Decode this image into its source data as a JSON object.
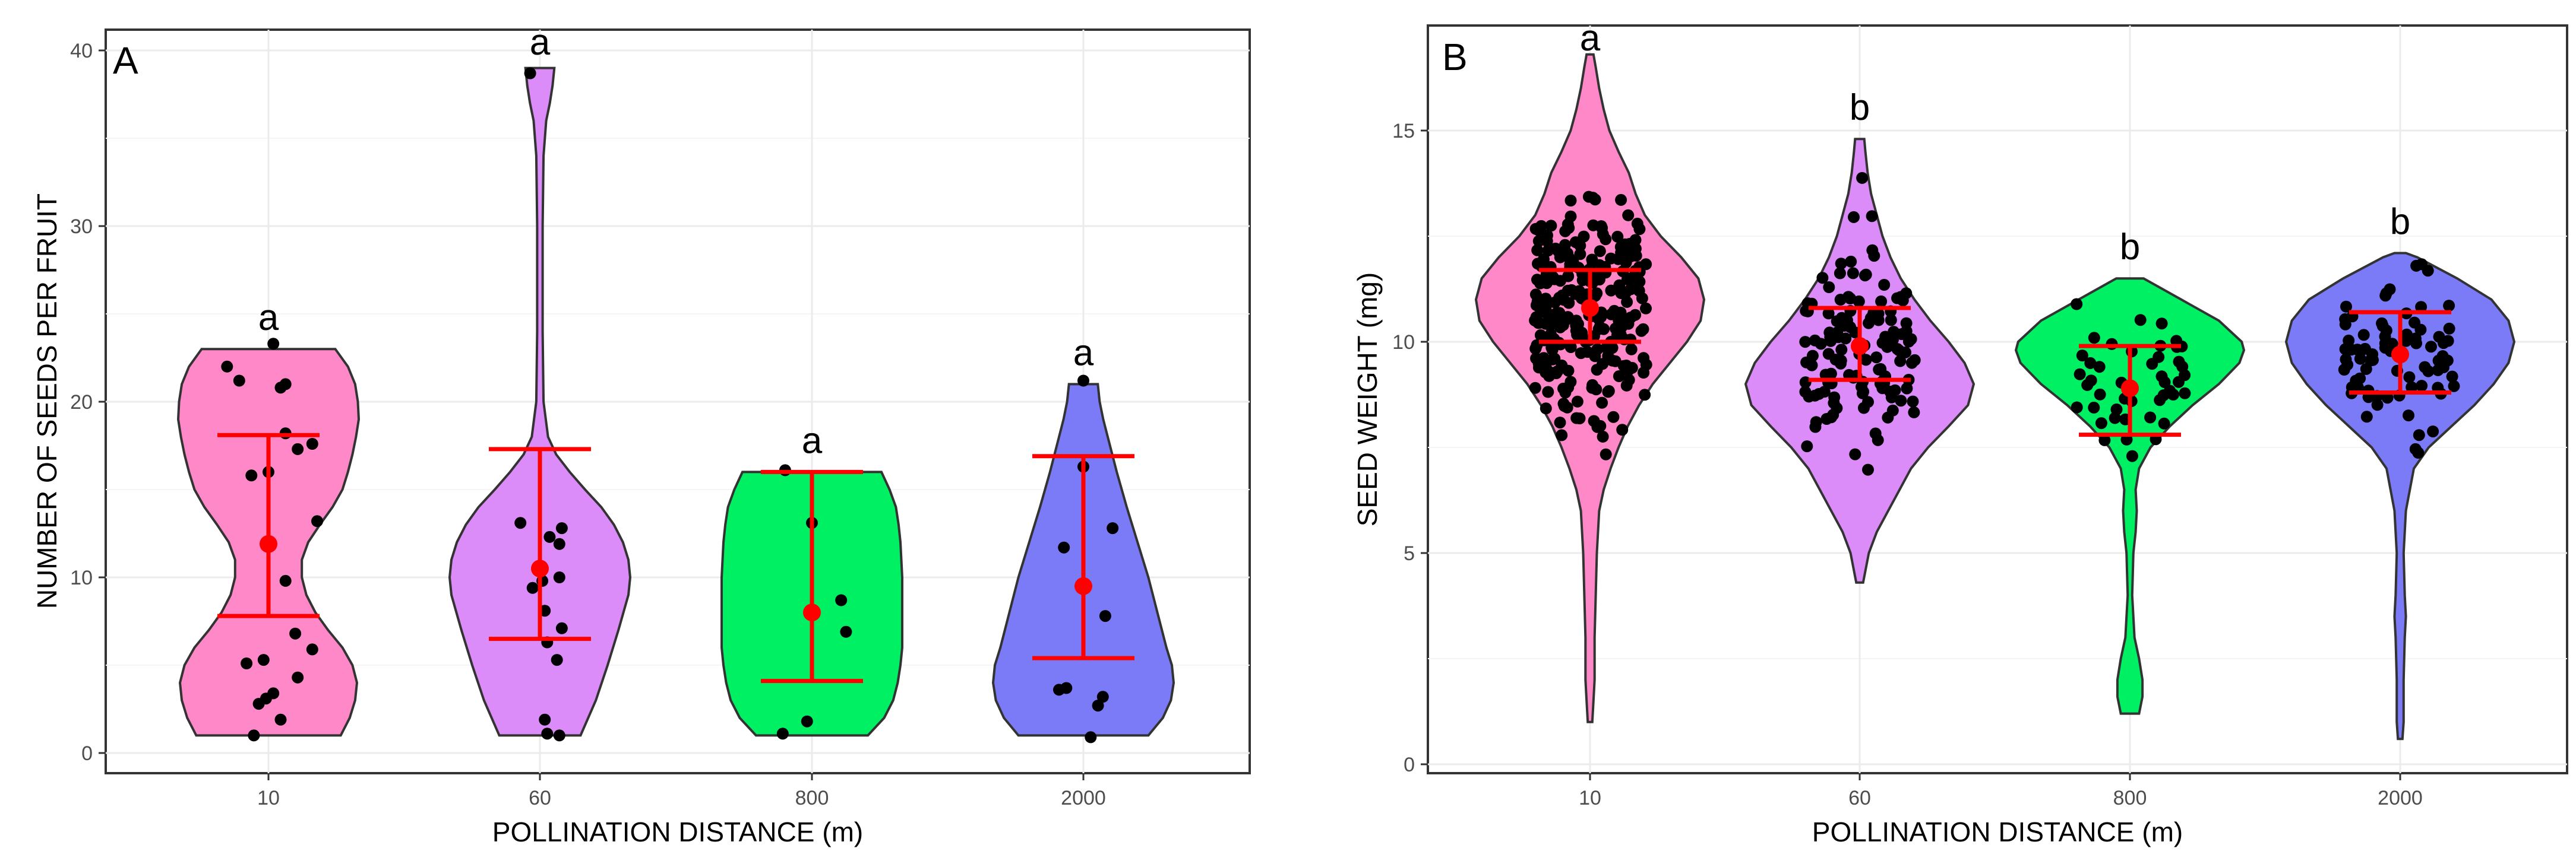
{
  "chart_data": [
    {
      "type": "violin",
      "panel_label": "A",
      "xlabel": "POLLINATION DISTANCE (m)",
      "ylabel": "NUMBER OF SEEDS PER FRUIT",
      "ylim": [
        0,
        41
      ],
      "yticks": [
        0,
        10,
        20,
        30,
        40
      ],
      "grid": true,
      "categories": [
        "10",
        "60",
        "800",
        "2000"
      ],
      "colors": [
        "#ff88c8",
        "#dc8cf8",
        "#00f064",
        "#7b7bf8"
      ],
      "groups": [
        {
          "category": "10",
          "letter": "a",
          "mean": 11.9,
          "lower": 7.8,
          "upper": 18.1,
          "min": 1,
          "max": 23,
          "density": [
            [
              1,
              0.8
            ],
            [
              2,
              0.9
            ],
            [
              3,
              0.96
            ],
            [
              4,
              0.98
            ],
            [
              5,
              0.93
            ],
            [
              6,
              0.82
            ],
            [
              7,
              0.66
            ],
            [
              8,
              0.52
            ],
            [
              9,
              0.42
            ],
            [
              10,
              0.37
            ],
            [
              11,
              0.37
            ],
            [
              12,
              0.44
            ],
            [
              13,
              0.57
            ],
            [
              14,
              0.71
            ],
            [
              15,
              0.82
            ],
            [
              16,
              0.88
            ],
            [
              17,
              0.93
            ],
            [
              18,
              0.97
            ],
            [
              19,
              1.0
            ],
            [
              20,
              0.99
            ],
            [
              21,
              0.96
            ],
            [
              22,
              0.88
            ],
            [
              23,
              0.74
            ]
          ],
          "points": [
            [
              1,
              -0.3
            ],
            [
              1.9,
              0.25
            ],
            [
              2.8,
              -0.2
            ],
            [
              3.1,
              -0.05
            ],
            [
              3.4,
              0.1
            ],
            [
              4.3,
              0.6
            ],
            [
              5.1,
              -0.45
            ],
            [
              5.3,
              -0.1
            ],
            [
              5.9,
              0.9
            ],
            [
              6.8,
              0.55
            ],
            [
              9.8,
              0.35
            ],
            [
              13.2,
              1.0
            ],
            [
              15.8,
              -0.35
            ],
            [
              16.0,
              0.0
            ],
            [
              17.3,
              0.6
            ],
            [
              17.6,
              0.9
            ],
            [
              18.2,
              0.35
            ],
            [
              20.8,
              0.25
            ],
            [
              21.0,
              0.35
            ],
            [
              21.2,
              -0.6
            ],
            [
              22.0,
              -0.85
            ],
            [
              23.3,
              0.1
            ]
          ]
        },
        {
          "category": "60",
          "letter": "a",
          "mean": 10.5,
          "lower": 6.5,
          "upper": 17.3,
          "min": 1,
          "max": 39,
          "density": [
            [
              1,
              0.45
            ],
            [
              3,
              0.62
            ],
            [
              5,
              0.75
            ],
            [
              7,
              0.87
            ],
            [
              9,
              0.98
            ],
            [
              10,
              1.0
            ],
            [
              11,
              0.98
            ],
            [
              12,
              0.92
            ],
            [
              13,
              0.82
            ],
            [
              14,
              0.68
            ],
            [
              15,
              0.5
            ],
            [
              16,
              0.33
            ],
            [
              17,
              0.18
            ],
            [
              18,
              0.09
            ],
            [
              20,
              0.04
            ],
            [
              24,
              0.03
            ],
            [
              30,
              0.03
            ],
            [
              34,
              0.04
            ],
            [
              36,
              0.07
            ],
            [
              37,
              0.11
            ],
            [
              38,
              0.14
            ],
            [
              39,
              0.16
            ]
          ],
          "points": [
            [
              1.0,
              0.4
            ],
            [
              1.1,
              0.15
            ],
            [
              1.9,
              0.1
            ],
            [
              5.3,
              0.35
            ],
            [
              6.3,
              0.15
            ],
            [
              7.1,
              0.45
            ],
            [
              8.1,
              0.1
            ],
            [
              9.4,
              -0.15
            ],
            [
              9.8,
              0.05
            ],
            [
              10.0,
              0.4
            ],
            [
              11.9,
              0.4
            ],
            [
              12.3,
              0.2
            ],
            [
              12.8,
              0.45
            ],
            [
              13.1,
              -0.4
            ],
            [
              38.7,
              -0.2
            ]
          ]
        },
        {
          "category": "800",
          "letter": "a",
          "mean": 8.0,
          "lower": 4.1,
          "upper": 16.0,
          "min": 1,
          "max": 16,
          "density": [
            [
              1,
              0.62
            ],
            [
              2,
              0.8
            ],
            [
              3,
              0.9
            ],
            [
              4,
              0.95
            ],
            [
              5,
              0.98
            ],
            [
              6,
              1.0
            ],
            [
              8,
              1.0
            ],
            [
              10,
              1.0
            ],
            [
              11,
              0.99
            ],
            [
              12,
              0.98
            ],
            [
              13,
              0.96
            ],
            [
              14,
              0.93
            ],
            [
              15,
              0.86
            ],
            [
              16,
              0.77
            ]
          ],
          "points": [
            [
              1.1,
              -0.6
            ],
            [
              1.8,
              -0.1
            ],
            [
              6.9,
              0.7
            ],
            [
              8.7,
              0.6
            ],
            [
              13.1,
              0.0
            ],
            [
              16.1,
              -0.55
            ]
          ]
        },
        {
          "category": "2000",
          "letter": "a",
          "mean": 9.5,
          "lower": 5.4,
          "upper": 16.9,
          "min": 1,
          "max": 21,
          "density": [
            [
              1,
              0.72
            ],
            [
              2,
              0.88
            ],
            [
              3,
              0.97
            ],
            [
              4,
              1.0
            ],
            [
              5,
              0.98
            ],
            [
              6,
              0.92
            ],
            [
              8,
              0.82
            ],
            [
              10,
              0.72
            ],
            [
              12,
              0.6
            ],
            [
              14,
              0.48
            ],
            [
              16,
              0.37
            ],
            [
              18,
              0.27
            ],
            [
              19,
              0.22
            ],
            [
              20,
              0.18
            ],
            [
              21,
              0.16
            ]
          ],
          "points": [
            [
              0.9,
              0.15
            ],
            [
              2.7,
              0.3
            ],
            [
              3.2,
              0.4
            ],
            [
              3.6,
              -0.5
            ],
            [
              3.7,
              -0.35
            ],
            [
              7.8,
              0.45
            ],
            [
              11.7,
              -0.4
            ],
            [
              12.8,
              0.6
            ],
            [
              16.3,
              0.0
            ],
            [
              21.2,
              0.0
            ]
          ]
        }
      ]
    },
    {
      "type": "violin",
      "panel_label": "B",
      "xlabel": "POLLINATION DISTANCE (m)",
      "ylabel": "SEED WEIGHT (mg)",
      "ylim": [
        0,
        17.2
      ],
      "yticks": [
        0,
        5,
        10,
        15
      ],
      "grid": true,
      "categories": [
        "10",
        "60",
        "800",
        "2000"
      ],
      "colors": [
        "#ff88c8",
        "#dc8cf8",
        "#00f064",
        "#7b7bf8"
      ],
      "groups": [
        {
          "category": "10",
          "letter": "a",
          "mean": 10.8,
          "lower": 10.0,
          "upper": 11.7,
          "min": 1,
          "max": 16.8,
          "n_points": 270,
          "point_sd": 1.6,
          "density": [
            [
              1.0,
              0.02
            ],
            [
              1.5,
              0.03
            ],
            [
              2,
              0.04
            ],
            [
              3,
              0.04
            ],
            [
              4,
              0.05
            ],
            [
              5,
              0.06
            ],
            [
              6,
              0.08
            ],
            [
              6.5,
              0.12
            ],
            [
              7,
              0.18
            ],
            [
              7.5,
              0.25
            ],
            [
              8,
              0.33
            ],
            [
              8.5,
              0.43
            ],
            [
              9,
              0.55
            ],
            [
              9.5,
              0.7
            ],
            [
              10,
              0.85
            ],
            [
              10.5,
              0.97
            ],
            [
              11,
              1.0
            ],
            [
              11.5,
              0.95
            ],
            [
              12,
              0.8
            ],
            [
              12.5,
              0.62
            ],
            [
              13,
              0.48
            ],
            [
              13.5,
              0.4
            ],
            [
              14,
              0.34
            ],
            [
              14.5,
              0.25
            ],
            [
              15,
              0.17
            ],
            [
              15.5,
              0.12
            ],
            [
              16,
              0.08
            ],
            [
              16.5,
              0.05
            ],
            [
              16.8,
              0.03
            ]
          ]
        },
        {
          "category": "60",
          "letter": "b",
          "mean": 9.9,
          "lower": 9.1,
          "upper": 10.8,
          "min": 4.3,
          "max": 14.8,
          "n_points": 130,
          "point_sd": 1.5,
          "density": [
            [
              4.3,
              0.03
            ],
            [
              5,
              0.08
            ],
            [
              5.5,
              0.15
            ],
            [
              6,
              0.25
            ],
            [
              6.5,
              0.35
            ],
            [
              7,
              0.45
            ],
            [
              7.5,
              0.6
            ],
            [
              8,
              0.78
            ],
            [
              8.5,
              0.95
            ],
            [
              9,
              1.0
            ],
            [
              9.5,
              0.92
            ],
            [
              10,
              0.78
            ],
            [
              10.5,
              0.62
            ],
            [
              11,
              0.48
            ],
            [
              11.5,
              0.36
            ],
            [
              12,
              0.27
            ],
            [
              12.5,
              0.2
            ],
            [
              13,
              0.15
            ],
            [
              13.5,
              0.1
            ],
            [
              14,
              0.07
            ],
            [
              14.5,
              0.05
            ],
            [
              14.8,
              0.04
            ]
          ]
        },
        {
          "category": "800",
          "letter": "b",
          "mean": 8.9,
          "lower": 7.8,
          "upper": 9.9,
          "min": 1.2,
          "max": 11.5,
          "n_points": 45,
          "point_sd": 1.0,
          "density": [
            [
              1.2,
              0.08
            ],
            [
              1.6,
              0.11
            ],
            [
              2,
              0.11
            ],
            [
              2.5,
              0.08
            ],
            [
              3,
              0.04
            ],
            [
              4,
              0.02
            ],
            [
              5,
              0.03
            ],
            [
              5.5,
              0.05
            ],
            [
              6,
              0.06
            ],
            [
              6.5,
              0.05
            ],
            [
              7,
              0.08
            ],
            [
              7.5,
              0.18
            ],
            [
              8,
              0.35
            ],
            [
              8.5,
              0.55
            ],
            [
              9,
              0.78
            ],
            [
              9.5,
              0.96
            ],
            [
              9.8,
              1.0
            ],
            [
              10,
              0.98
            ],
            [
              10.5,
              0.78
            ],
            [
              11,
              0.45
            ],
            [
              11.5,
              0.12
            ]
          ]
        },
        {
          "category": "2000",
          "letter": "b",
          "mean": 9.7,
          "lower": 8.8,
          "upper": 10.7,
          "min": 0.6,
          "max": 12.1,
          "n_points": 80,
          "point_sd": 1.0,
          "density": [
            [
              0.6,
              0.02
            ],
            [
              1,
              0.03
            ],
            [
              2,
              0.03
            ],
            [
              3,
              0.04
            ],
            [
              3.5,
              0.05
            ],
            [
              4,
              0.04
            ],
            [
              5,
              0.03
            ],
            [
              6,
              0.05
            ],
            [
              7,
              0.12
            ],
            [
              7.5,
              0.25
            ],
            [
              8,
              0.45
            ],
            [
              8.5,
              0.65
            ],
            [
              9,
              0.82
            ],
            [
              9.5,
              0.95
            ],
            [
              10,
              1.0
            ],
            [
              10.5,
              0.95
            ],
            [
              11,
              0.8
            ],
            [
              11.5,
              0.5
            ],
            [
              12,
              0.15
            ],
            [
              12.1,
              0.05
            ]
          ]
        }
      ]
    }
  ]
}
